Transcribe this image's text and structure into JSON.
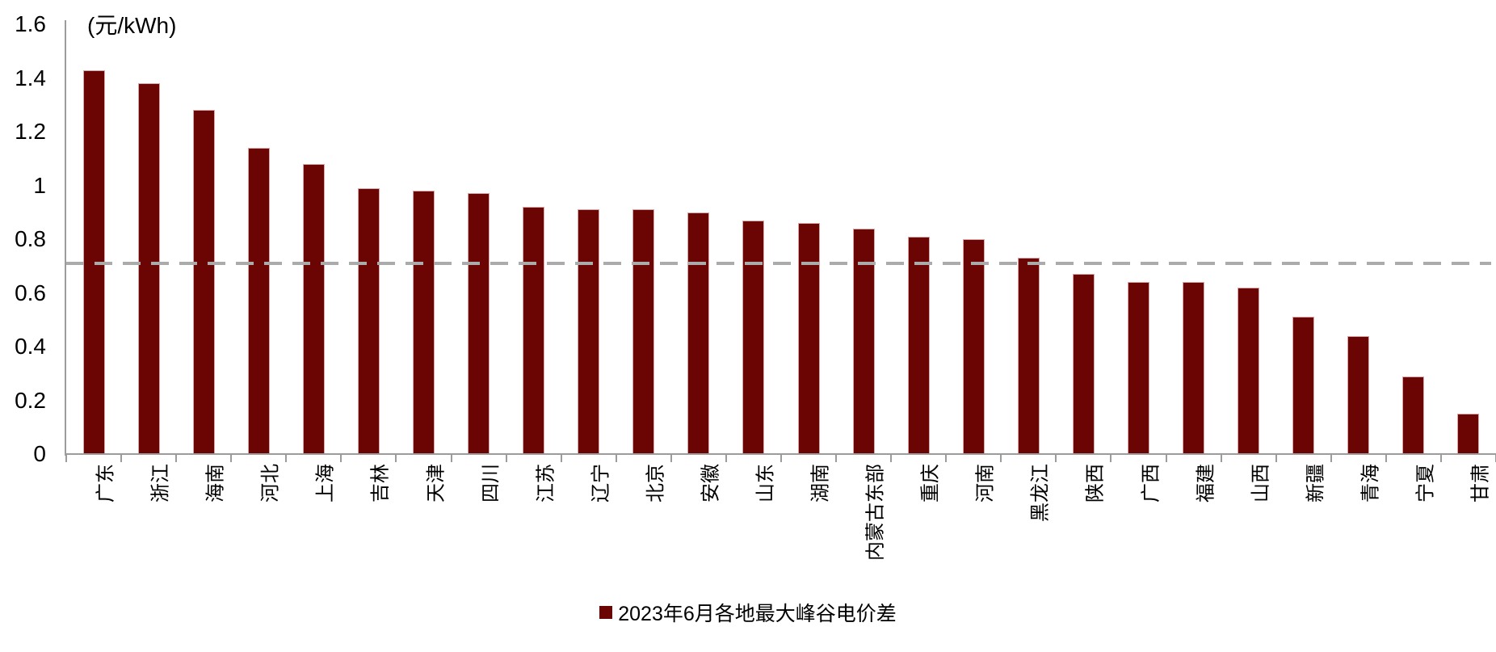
{
  "chart_data": {
    "type": "bar",
    "unit_label": "(元/kWh)",
    "categories": [
      "广东",
      "浙江",
      "海南",
      "河北",
      "上海",
      "吉林",
      "天津",
      "四川",
      "江苏",
      "辽宁",
      "北京",
      "安徽",
      "山东",
      "湖南",
      "内蒙古东部",
      "重庆",
      "河南",
      "黑龙江",
      "陕西",
      "广西",
      "福建",
      "山西",
      "新疆",
      "青海",
      "宁夏",
      "甘肃"
    ],
    "series": [
      {
        "name": "2023年6月各地最大峰谷电价差",
        "values": [
          1.43,
          1.38,
          1.28,
          1.14,
          1.08,
          0.99,
          0.98,
          0.97,
          0.92,
          0.91,
          0.91,
          0.9,
          0.87,
          0.86,
          0.84,
          0.81,
          0.8,
          0.73,
          0.67,
          0.64,
          0.64,
          0.62,
          0.51,
          0.44,
          0.29,
          0.15
        ]
      }
    ],
    "ylim": [
      0,
      1.6
    ],
    "ytick_labels": [
      "0",
      "0.2",
      "0.4",
      "0.6",
      "0.8",
      "1",
      "1.2",
      "1.4",
      "1.6"
    ],
    "reference_line_value": 0.71,
    "grid": false,
    "legend_position": "bottom-center",
    "colors": {
      "bar": "#6b0504",
      "bar_edge": "#d9a7a7",
      "axis": "#9c9c9c",
      "reference_line": "#ababab",
      "text": "#000000",
      "background": "#ffffff"
    }
  }
}
